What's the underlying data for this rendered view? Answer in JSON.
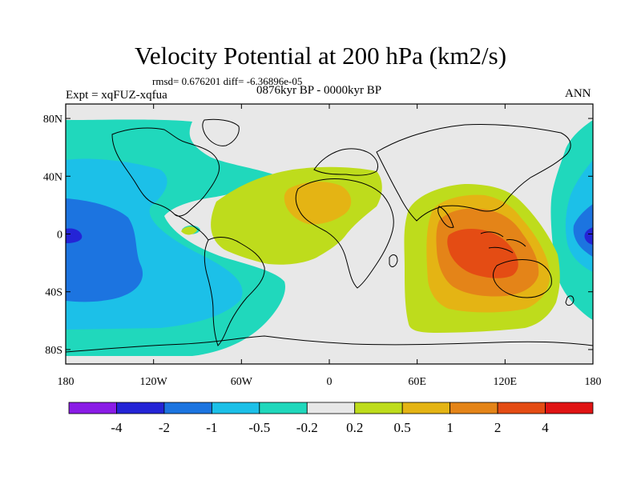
{
  "figure": {
    "title": "Velocity Potential at 200 hPa (km2/s)",
    "stats_line": "rmsd= 0.676201 diff= -6.36896e-05",
    "experiment_label": "Expt = xqFUZ-xqfua",
    "period_label": "0876kyr BP - 0000kyr BP",
    "season_label": "ANN"
  },
  "map": {
    "projection": "cylindrical-equidistant",
    "lon_range": [
      -180,
      180
    ],
    "lat_range": [
      -90,
      90
    ],
    "lon_ticks": [
      {
        "value": -180,
        "label": "180"
      },
      {
        "value": -120,
        "label": "120W"
      },
      {
        "value": -60,
        "label": "60W"
      },
      {
        "value": 0,
        "label": "0"
      },
      {
        "value": 60,
        "label": "60E"
      },
      {
        "value": 120,
        "label": "120E"
      },
      {
        "value": 180,
        "label": "180"
      }
    ],
    "lat_ticks": [
      {
        "value": 80,
        "label": "80N"
      },
      {
        "value": 40,
        "label": "40N"
      },
      {
        "value": 0,
        "label": "0"
      },
      {
        "value": -40,
        "label": "40S"
      },
      {
        "value": -80,
        "label": "80S"
      }
    ],
    "field_description": "Negative velocity potential (convergence aloft) over the central/eastern Pacific and North America; positive (divergence) centered over the Maritime Continent / eastern Indian Ocean, with weaker positive over North Africa and the Atlantic.",
    "extrema": [
      {
        "lon": -178,
        "lat": 0,
        "sign": "negative",
        "approx_value": -2.5
      },
      {
        "lon": 178,
        "lat": 0,
        "sign": "negative",
        "approx_value": -2.5
      },
      {
        "lon": 100,
        "lat": -10,
        "sign": "positive",
        "approx_value": 2.5
      },
      {
        "lon": -10,
        "lat": 25,
        "sign": "positive",
        "approx_value": 0.7
      }
    ]
  },
  "colorbar": {
    "levels": [
      "-4",
      "-2",
      "-1",
      "-0.5",
      "-0.2",
      "0.2",
      "0.5",
      "1",
      "2",
      "4"
    ],
    "colors": [
      "#8a1ce6",
      "#2424d6",
      "#1c74e0",
      "#1cc0e8",
      "#20d8bc",
      "#e8e8e8",
      "#bedc1c",
      "#e4b414",
      "#e48418",
      "#e44c14",
      "#e01414"
    ]
  }
}
